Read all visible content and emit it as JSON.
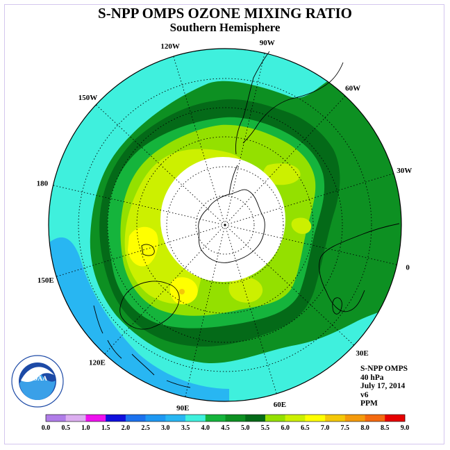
{
  "title": "S-NPP OMPS OZONE MIXING RATIO",
  "subtitle": "Southern Hemisphere",
  "longitude_labels": [
    {
      "text": "90W",
      "angle": 90
    },
    {
      "text": "60W",
      "angle": 60
    },
    {
      "text": "30W",
      "angle": 30
    },
    {
      "text": "0",
      "angle": 0
    },
    {
      "text": "30E",
      "angle": -30
    },
    {
      "text": "60E",
      "angle": -60
    },
    {
      "text": "90E",
      "angle": -90
    },
    {
      "text": "120E",
      "angle": -120
    },
    {
      "text": "150E",
      "angle": -150
    },
    {
      "text": "180",
      "angle": 180
    },
    {
      "text": "150W",
      "angle": 150
    },
    {
      "text": "120W",
      "angle": 120
    }
  ],
  "info": {
    "instrument": "S-NPP OMPS",
    "level": "40 hPa",
    "date": "July 17, 2014",
    "version": "v6",
    "units": "PPM"
  },
  "legend": {
    "ticks": [
      "0.0",
      "0.5",
      "1.0",
      "1.5",
      "2.0",
      "2.5",
      "3.0",
      "3.5",
      "4.0",
      "4.5",
      "5.0",
      "5.5",
      "6.0",
      "6.5",
      "7.0",
      "7.5",
      "8.0",
      "8.5",
      "9.0"
    ],
    "colors": [
      "#b07de8",
      "#dcaef0",
      "#ee11ee",
      "#1010dd",
      "#1c72ee",
      "#1e98f2",
      "#28b6f2",
      "#3ff0dd",
      "#15b43c",
      "#0d9022",
      "#046a18",
      "#94e000",
      "#ccf000",
      "#ffff00",
      "#f4c808",
      "#f49a0c",
      "#f46a10",
      "#e60000",
      "#8c5a3c"
    ]
  },
  "colors": {
    "ocean_bg": "#3ff0dd",
    "low_band": "#28b6f2",
    "outer_green": "#0d9022",
    "dark_green": "#046a18",
    "mid_green": "#15b43c",
    "yellow_green": "#94e000",
    "light_yellow": "#ccf000",
    "yellow": "#ffff00",
    "orange": "#f4c808",
    "polar_night": "#ffffff"
  },
  "logo_text": "NOAA"
}
